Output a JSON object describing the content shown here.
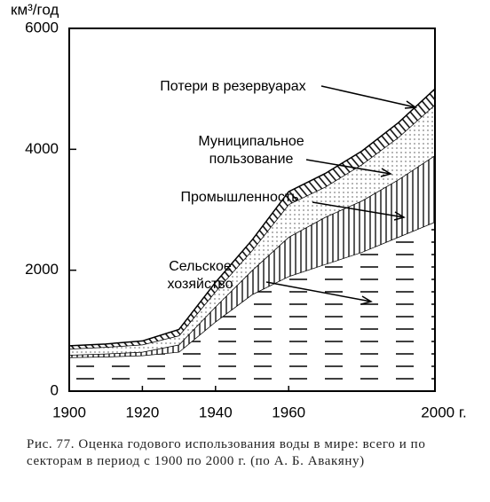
{
  "chart_data": {
    "type": "stacked-area",
    "y_label": "км³/год",
    "x": [
      1900,
      1910,
      1920,
      1930,
      1940,
      1950,
      1960,
      1970,
      1980,
      1990,
      2000
    ],
    "series": [
      {
        "name": "Сельское хозяйство",
        "color": "#000000",
        "hatch": "dashes",
        "values": [
          560,
          570,
          590,
          650,
          1150,
          1600,
          1900,
          2100,
          2300,
          2550,
          2800
        ]
      },
      {
        "name": "Промышленность",
        "color": "#000000",
        "hatch": "vertical",
        "values": [
          40,
          50,
          60,
          120,
          250,
          400,
          650,
          780,
          850,
          950,
          1100
        ]
      },
      {
        "name": "Муниципальное пользование",
        "color": "#000000",
        "hatch": "dots",
        "values": [
          100,
          110,
          120,
          150,
          250,
          330,
          540,
          500,
          600,
          700,
          840
        ]
      },
      {
        "name": "Потери в резервуарах",
        "color": "#000000",
        "hatch": "diagonal",
        "values": [
          50,
          50,
          60,
          100,
          150,
          170,
          210,
          220,
          220,
          240,
          260
        ]
      }
    ],
    "xlim": [
      1900,
      2000
    ],
    "ylim": [
      0,
      6000
    ],
    "xticks": [
      1900,
      1920,
      1940,
      1960,
      {
        "value": 2000,
        "label": "2000 г."
      }
    ],
    "yticks": [
      0,
      2000,
      4000,
      6000
    ],
    "caption": "Рис. 77. Оценка годового использования воды в мире: всего и по секторам в период с 1900 по 2000 г. (по А. Б. Авакяну)"
  }
}
